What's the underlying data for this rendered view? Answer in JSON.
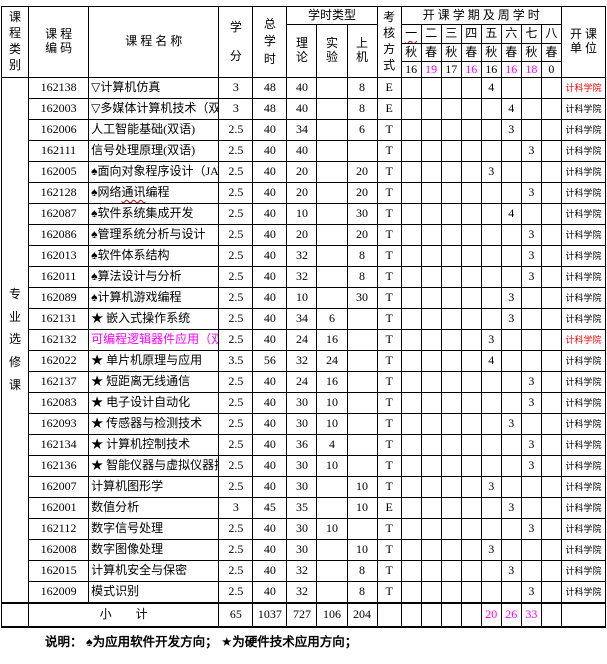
{
  "header": {
    "col_category": "课程类别",
    "col_code": "课 程\n编 码",
    "col_name": "课 程 名 称",
    "col_credit": "学\n分",
    "col_total": "总\n学\n时",
    "group_hour_types": "学时类型",
    "col_theory": "理\n论",
    "col_exp": "实\n验",
    "col_computer": "上\n机",
    "col_assess": "考核方式",
    "group_semester": "开 课 学 期 及 周 学 时",
    "col_unit": "开 课\n单 位",
    "semesters": [
      {
        "term": "一",
        "season": "秋",
        "week": "16",
        "week_magenta": false,
        "term_wavy": true
      },
      {
        "term": "二",
        "season": "春",
        "week": "19",
        "week_magenta": true,
        "term_wavy": false
      },
      {
        "term": "三",
        "season": "秋",
        "week": "17",
        "week_magenta": false,
        "term_wavy": false
      },
      {
        "term": "四",
        "season": "春",
        "week": "16",
        "week_magenta": true,
        "term_wavy": false
      },
      {
        "term": "五",
        "season": "秋",
        "week": "16",
        "week_magenta": false,
        "term_wavy": false
      },
      {
        "term": "六",
        "season": "春",
        "week": "16",
        "week_magenta": true,
        "term_wavy": false
      },
      {
        "term": "七",
        "season": "秋",
        "week": "18",
        "week_magenta": true,
        "term_wavy": false
      },
      {
        "term": "八",
        "season": "春",
        "week": "0",
        "week_magenta": false,
        "term_wavy": false
      }
    ]
  },
  "category_label": "专业选修课",
  "rows": [
    {
      "code": "162138",
      "name": "▽计算机仿真",
      "credit": "3",
      "total": "48",
      "theory": "40",
      "exp": "",
      "comp": "8",
      "assess": "E",
      "sem": 5,
      "week": "4",
      "unit": "计科学院",
      "unit_red": true,
      "name_magenta": false,
      "wavy": ""
    },
    {
      "code": "162003",
      "name": "▽多媒体计算机技术（双语）",
      "credit": "3",
      "total": "48",
      "theory": "40",
      "exp": "",
      "comp": "8",
      "assess": "E",
      "sem": 6,
      "week": "4",
      "unit": "计科学院",
      "unit_red": false,
      "name_magenta": false,
      "wavy": ""
    },
    {
      "code": "162006",
      "name": "人工智能基础(双语)",
      "credit": "2.5",
      "total": "40",
      "theory": "34",
      "exp": "",
      "comp": "6",
      "assess": "T",
      "sem": 6,
      "week": "3",
      "unit": "计科学院",
      "unit_red": false,
      "name_magenta": false,
      "wavy": ""
    },
    {
      "code": "162111",
      "name": "信号处理原理(双语)",
      "credit": "2.5",
      "total": "40",
      "theory": "40",
      "exp": "",
      "comp": "",
      "assess": "T",
      "sem": 7,
      "week": "3",
      "unit": "计科学院",
      "unit_red": false,
      "name_magenta": false,
      "wavy": ""
    },
    {
      "code": "162005",
      "name": "♠面向对象程序设计（JAVA）",
      "credit": "2.5",
      "total": "40",
      "theory": "20",
      "exp": "",
      "comp": "20",
      "assess": "T",
      "sem": 5,
      "week": "3",
      "unit": "计科学院",
      "unit_red": false,
      "name_magenta": false,
      "wavy": ""
    },
    {
      "code": "162128",
      "name": "♠网络通讯编程",
      "credit": "2.5",
      "total": "40",
      "theory": "20",
      "exp": "",
      "comp": "20",
      "assess": "T",
      "sem": 7,
      "week": "3",
      "unit": "计科学院",
      "unit_red": false,
      "name_magenta": false,
      "wavy": "通讯"
    },
    {
      "code": "162087",
      "name": "♠软件系统集成开发",
      "credit": "2.5",
      "total": "40",
      "theory": "10",
      "exp": "",
      "comp": "30",
      "assess": "T",
      "sem": 6,
      "week": "4",
      "unit": "计科学院",
      "unit_red": false,
      "name_magenta": false,
      "wavy": ""
    },
    {
      "code": "162086",
      "name": "♠管理系统分析与设计",
      "credit": "2.5",
      "total": "40",
      "theory": "20",
      "exp": "",
      "comp": "20",
      "assess": "T",
      "sem": 7,
      "week": "3",
      "unit": "计科学院",
      "unit_red": false,
      "name_magenta": false,
      "wavy": ""
    },
    {
      "code": "162013",
      "name": "♠软件体系结构",
      "credit": "2.5",
      "total": "40",
      "theory": "32",
      "exp": "",
      "comp": "8",
      "assess": "T",
      "sem": 7,
      "week": "3",
      "unit": "计科学院",
      "unit_red": false,
      "name_magenta": false,
      "wavy": ""
    },
    {
      "code": "162011",
      "name": "♠算法设计与分析",
      "credit": "2.5",
      "total": "40",
      "theory": "32",
      "exp": "",
      "comp": "8",
      "assess": "T",
      "sem": 7,
      "week": "3",
      "unit": "计科学院",
      "unit_red": false,
      "name_magenta": false,
      "wavy": ""
    },
    {
      "code": "162089",
      "name": "♠计算机游戏编程",
      "credit": "2.5",
      "total": "40",
      "theory": "10",
      "exp": "",
      "comp": "30",
      "assess": "T",
      "sem": 6,
      "week": "3",
      "unit": "计科学院",
      "unit_red": false,
      "name_magenta": false,
      "wavy": ""
    },
    {
      "code": "162131",
      "name": "★ 嵌入式操作系统",
      "credit": "2.5",
      "total": "40",
      "theory": "34",
      "exp": "6",
      "comp": "",
      "assess": "T",
      "sem": 6,
      "week": "3",
      "unit": "计科学院",
      "unit_red": false,
      "name_magenta": false,
      "wavy": ""
    },
    {
      "code": "162132",
      "name": "可编程逻辑器件应用（双语）",
      "credit": "2.5",
      "total": "40",
      "theory": "24",
      "exp": "16",
      "comp": "",
      "assess": "T",
      "sem": 5,
      "week": "3",
      "unit": "计科学院",
      "unit_red": true,
      "name_magenta": true,
      "wavy": ""
    },
    {
      "code": "162022",
      "name": "★ 单片机原理与应用",
      "credit": "3.5",
      "total": "56",
      "theory": "32",
      "exp": "24",
      "comp": "",
      "assess": "T",
      "sem": 5,
      "week": "4",
      "unit": "计科学院",
      "unit_red": false,
      "name_magenta": false,
      "wavy": ""
    },
    {
      "code": "162137",
      "name": "★ 短距离无线通信",
      "credit": "2.5",
      "total": "40",
      "theory": "24",
      "exp": "16",
      "comp": "",
      "assess": "T",
      "sem": 7,
      "week": "3",
      "unit": "计科学院",
      "unit_red": false,
      "name_magenta": false,
      "wavy": ""
    },
    {
      "code": "162083",
      "name": "★ 电子设计自动化",
      "credit": "2.5",
      "total": "40",
      "theory": "30",
      "exp": "10",
      "comp": "",
      "assess": "T",
      "sem": 7,
      "week": "3",
      "unit": "计科学院",
      "unit_red": false,
      "name_magenta": false,
      "wavy": ""
    },
    {
      "code": "162093",
      "name": "★ 传感器与检测技术",
      "credit": "2.5",
      "total": "40",
      "theory": "30",
      "exp": "10",
      "comp": "",
      "assess": "T",
      "sem": 6,
      "week": "3",
      "unit": "计科学院",
      "unit_red": false,
      "name_magenta": false,
      "wavy": ""
    },
    {
      "code": "162134",
      "name": "★ 计算机控制技术",
      "credit": "2.5",
      "total": "40",
      "theory": "36",
      "exp": "4",
      "comp": "",
      "assess": "T",
      "sem": 7,
      "week": "3",
      "unit": "计科学院",
      "unit_red": false,
      "name_magenta": false,
      "wavy": ""
    },
    {
      "code": "162136",
      "name": "★ 智能仪器与虚拟仪器技术",
      "credit": "2.5",
      "total": "40",
      "theory": "30",
      "exp": "10",
      "comp": "",
      "assess": "T",
      "sem": 7,
      "week": "3",
      "unit": "计科学院",
      "unit_red": false,
      "name_magenta": false,
      "wavy": ""
    },
    {
      "code": "162007",
      "name": "计算机图形学",
      "credit": "2.5",
      "total": "40",
      "theory": "30",
      "exp": "",
      "comp": "10",
      "assess": "T",
      "sem": 5,
      "week": "3",
      "unit": "计科学院",
      "unit_red": false,
      "name_magenta": false,
      "wavy": ""
    },
    {
      "code": "162001",
      "name": "数值分析",
      "credit": "3",
      "total": "45",
      "theory": "35",
      "exp": "",
      "comp": "10",
      "assess": "E",
      "sem": 6,
      "week": "3",
      "unit": "计科学院",
      "unit_red": false,
      "name_magenta": false,
      "wavy": ""
    },
    {
      "code": "162112",
      "name": "数字信号处理",
      "credit": "2.5",
      "total": "40",
      "theory": "30",
      "exp": "10",
      "comp": "",
      "assess": "T",
      "sem": 7,
      "week": "3",
      "unit": "计科学院",
      "unit_red": false,
      "name_magenta": false,
      "wavy": ""
    },
    {
      "code": "162008",
      "name": "数字图像处理",
      "credit": "2.5",
      "total": "40",
      "theory": "30",
      "exp": "",
      "comp": "10",
      "assess": "T",
      "sem": 5,
      "week": "3",
      "unit": "计科学院",
      "unit_red": false,
      "name_magenta": false,
      "wavy": ""
    },
    {
      "code": "162015",
      "name": "计算机安全与保密",
      "credit": "2.5",
      "total": "40",
      "theory": "32",
      "exp": "",
      "comp": "8",
      "assess": "T",
      "sem": 6,
      "week": "3",
      "unit": "计科学院",
      "unit_red": false,
      "name_magenta": false,
      "wavy": ""
    },
    {
      "code": "162009",
      "name": "模式识别",
      "credit": "2.5",
      "total": "40",
      "theory": "32",
      "exp": "",
      "comp": "8",
      "assess": "T",
      "sem": 7,
      "week": "3",
      "unit": "计科学院",
      "unit_red": false,
      "name_magenta": false,
      "wavy": ""
    }
  ],
  "subtotal": {
    "label": "小　　计",
    "credit": "65",
    "total": "1037",
    "theory": "727",
    "exp": "106",
    "comp": "204",
    "assess": "",
    "sem_values": {
      "5": "20",
      "6": "26",
      "7": "33"
    },
    "unit": ""
  },
  "note": "说明： ♠为应用软件开发方向； ★为硬件技术应用方向；",
  "colors": {
    "magenta": "#ff00ff",
    "red": "#ff0000",
    "squiggle": "#cc0000"
  }
}
